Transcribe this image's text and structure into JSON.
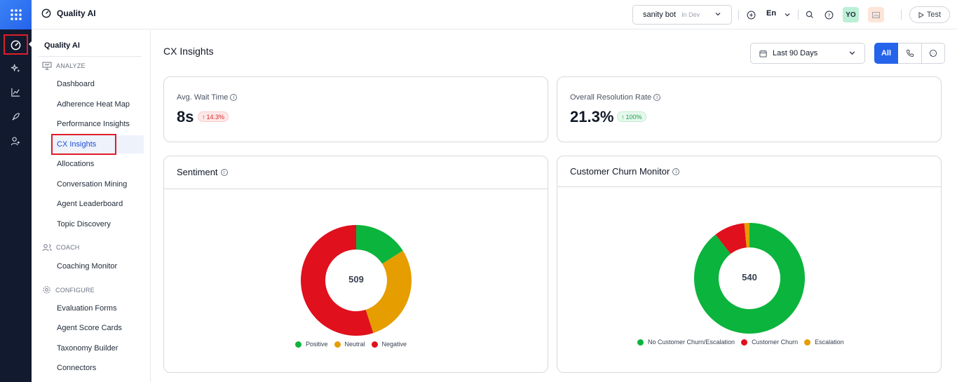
{
  "app": {
    "title": "Quality AI"
  },
  "header": {
    "bot_name": "sanity bot",
    "bot_env": "In Dev",
    "language": "En",
    "avatar_initials": "YO",
    "test_label": "Test"
  },
  "sidenav": {
    "title": "Quality AI",
    "sections": [
      {
        "label": "ANALYZE"
      },
      {
        "label": "COACH"
      },
      {
        "label": "CONFIGURE"
      }
    ],
    "items": [
      {
        "label": "Dashboard"
      },
      {
        "label": "Adherence Heat Map"
      },
      {
        "label": "Performance Insights"
      },
      {
        "label": "CX Insights"
      },
      {
        "label": "Allocations"
      },
      {
        "label": "Conversation Mining"
      },
      {
        "label": "Agent Leaderboard"
      },
      {
        "label": "Topic Discovery"
      },
      {
        "label": "Coaching Monitor"
      },
      {
        "label": "Evaluation Forms"
      },
      {
        "label": "Agent Score Cards"
      },
      {
        "label": "Taxonomy Builder"
      },
      {
        "label": "Connectors"
      }
    ]
  },
  "main": {
    "page_title": "CX Insights",
    "date_range": "Last 90 Days",
    "channel_all": "All",
    "kpis": [
      {
        "label": "Avg. Wait Time",
        "value": "8s",
        "change": "14.3%",
        "direction": "up",
        "status_color": "#dc2626"
      },
      {
        "label": "Overall Resolution Rate",
        "value": "21.3%",
        "change": "100%",
        "direction": "up",
        "status_color": "#16a34a"
      }
    ]
  },
  "colors": {
    "positive": "#0bb43c",
    "neutral": "#e69d00",
    "negative": "#e0101d",
    "accent": "#2563eb"
  },
  "chart_data": [
    {
      "type": "pie",
      "title": "Sentiment",
      "total": "509",
      "categories": [
        "Positive",
        "Neutral",
        "Negative"
      ],
      "values": [
        0.16,
        0.29,
        0.55
      ],
      "colors": [
        "#0bb43c",
        "#e69d00",
        "#e0101d"
      ]
    },
    {
      "type": "pie",
      "title": "Customer Churn Monitor",
      "total": "540",
      "categories": [
        "No Customer Churn/Escalation",
        "Customer Churn",
        "Escalation"
      ],
      "values": [
        0.895,
        0.09,
        0.015
      ],
      "colors": [
        "#0bb43c",
        "#e0101d",
        "#e69d00"
      ]
    }
  ]
}
